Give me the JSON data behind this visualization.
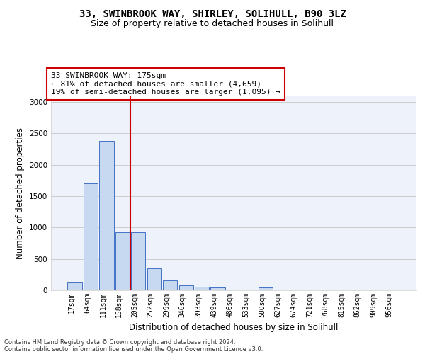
{
  "title_line1": "33, SWINBROOK WAY, SHIRLEY, SOLIHULL, B90 3LZ",
  "title_line2": "Size of property relative to detached houses in Solihull",
  "xlabel": "Distribution of detached houses by size in Solihull",
  "ylabel": "Number of detached properties",
  "bar_categories": [
    "17sqm",
    "64sqm",
    "111sqm",
    "158sqm",
    "205sqm",
    "252sqm",
    "299sqm",
    "346sqm",
    "393sqm",
    "439sqm",
    "486sqm",
    "533sqm",
    "580sqm",
    "627sqm",
    "674sqm",
    "721sqm",
    "768sqm",
    "815sqm",
    "862sqm",
    "909sqm",
    "956sqm"
  ],
  "bar_values": [
    120,
    1700,
    2380,
    930,
    930,
    350,
    155,
    80,
    55,
    40,
    0,
    0,
    40,
    0,
    0,
    0,
    0,
    0,
    0,
    0,
    0
  ],
  "bar_color": "#c6d9f1",
  "bar_edge_color": "#4472c4",
  "vline_color": "#cc0000",
  "annotation_line1": "33 SWINBROOK WAY: 175sqm",
  "annotation_line2": "← 81% of detached houses are smaller (4,659)",
  "annotation_line3": "19% of semi-detached houses are larger (1,095) →",
  "annotation_box_color": "#ffffff",
  "annotation_box_edge": "#cc0000",
  "ylim": [
    0,
    3100
  ],
  "yticks": [
    0,
    500,
    1000,
    1500,
    2000,
    2500,
    3000
  ],
  "grid_color": "#cccccc",
  "bg_color": "#eef2fb",
  "footer_line1": "Contains HM Land Registry data © Crown copyright and database right 2024.",
  "footer_line2": "Contains public sector information licensed under the Open Government Licence v3.0.",
  "title_fontsize": 10,
  "subtitle_fontsize": 9,
  "axis_label_fontsize": 8.5,
  "tick_fontsize": 7,
  "annotation_fontsize": 8,
  "footer_fontsize": 6
}
